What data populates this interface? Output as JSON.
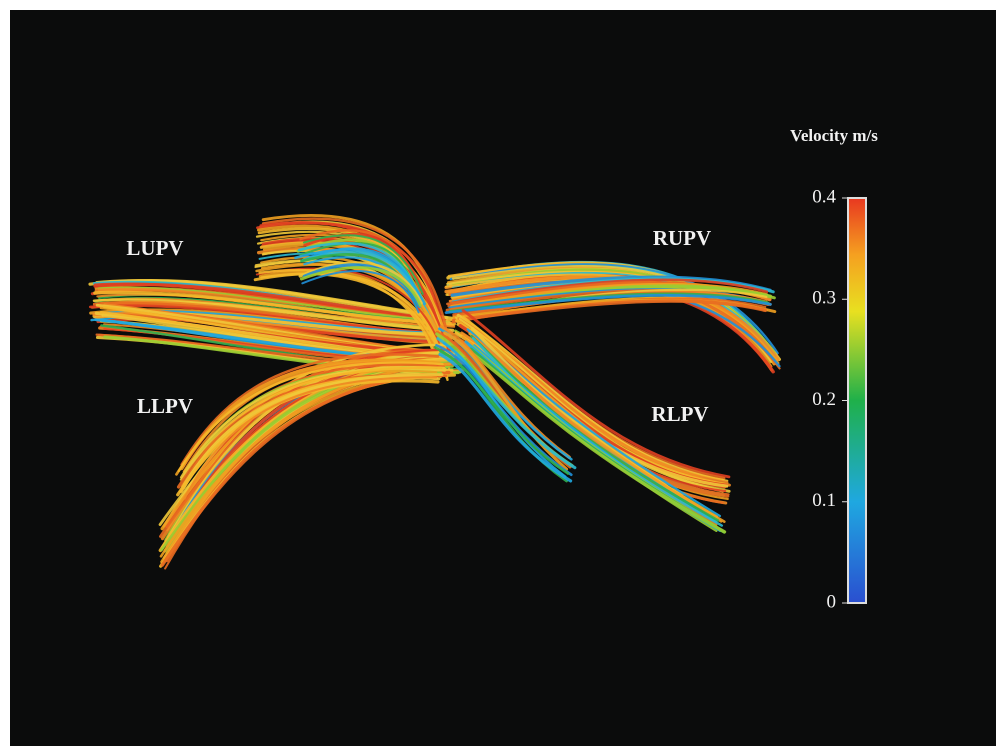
{
  "labels": [
    "LUPV",
    "RUPV",
    "LLPV",
    "RLPV"
  ],
  "colorbar": {
    "title": "Velocity m/s",
    "lim": [
      0,
      0.4
    ],
    "ticks": [
      0,
      0.1,
      0.2,
      0.3,
      0.4
    ]
  }
}
